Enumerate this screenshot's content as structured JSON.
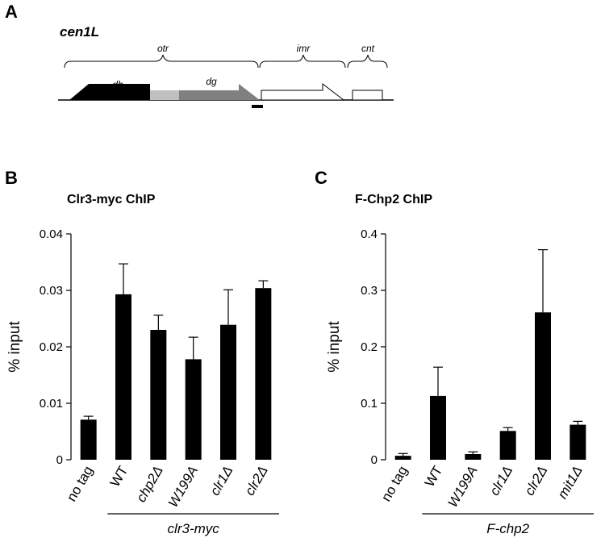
{
  "figure": {
    "panel_a": {
      "letter": "A",
      "gene": "cen1L",
      "regions": [
        "otr",
        "imr",
        "cnt"
      ],
      "repeats": [
        "dh",
        "dg"
      ]
    }
  },
  "chart_data": [
    {
      "panel": "B",
      "type": "bar",
      "title": "Clr3-myc ChIP",
      "ylabel": "% input",
      "ylim": [
        0,
        0.04
      ],
      "yticks": [
        0,
        0.01,
        0.02,
        0.03,
        0.04
      ],
      "ytick_labels": [
        "0",
        "0.01",
        "0.02",
        "0.03",
        "0.04"
      ],
      "categories": [
        "no tag",
        "WT",
        "chp2Δ",
        "W199A",
        "clr1Δ",
        "clr2Δ"
      ],
      "category_italic": [
        false,
        false,
        true,
        true,
        true,
        true
      ],
      "values": [
        0.0071,
        0.0293,
        0.023,
        0.0178,
        0.0239,
        0.0304
      ],
      "errors": [
        0.0006,
        0.0054,
        0.0026,
        0.0039,
        0.0062,
        0.0013
      ],
      "group_label": "clr3-myc",
      "group_start": 1,
      "bar_color": "#000000"
    },
    {
      "panel": "C",
      "type": "bar",
      "title": "F-Chp2 ChIP",
      "ylabel": "% input",
      "ylim": [
        0,
        0.4
      ],
      "yticks": [
        0,
        0.1,
        0.2,
        0.3,
        0.4
      ],
      "ytick_labels": [
        "0",
        "0.1",
        "0.2",
        "0.3",
        "0.4"
      ],
      "categories": [
        "no tag",
        "WT",
        "W199A",
        "clr1Δ",
        "clr2Δ",
        "mit1Δ"
      ],
      "category_italic": [
        false,
        false,
        true,
        true,
        true,
        true
      ],
      "values": [
        0.007,
        0.113,
        0.01,
        0.051,
        0.261,
        0.062
      ],
      "errors": [
        0.004,
        0.051,
        0.004,
        0.006,
        0.111,
        0.006
      ],
      "group_label": "F-chp2",
      "group_start": 1,
      "bar_color": "#000000"
    }
  ]
}
